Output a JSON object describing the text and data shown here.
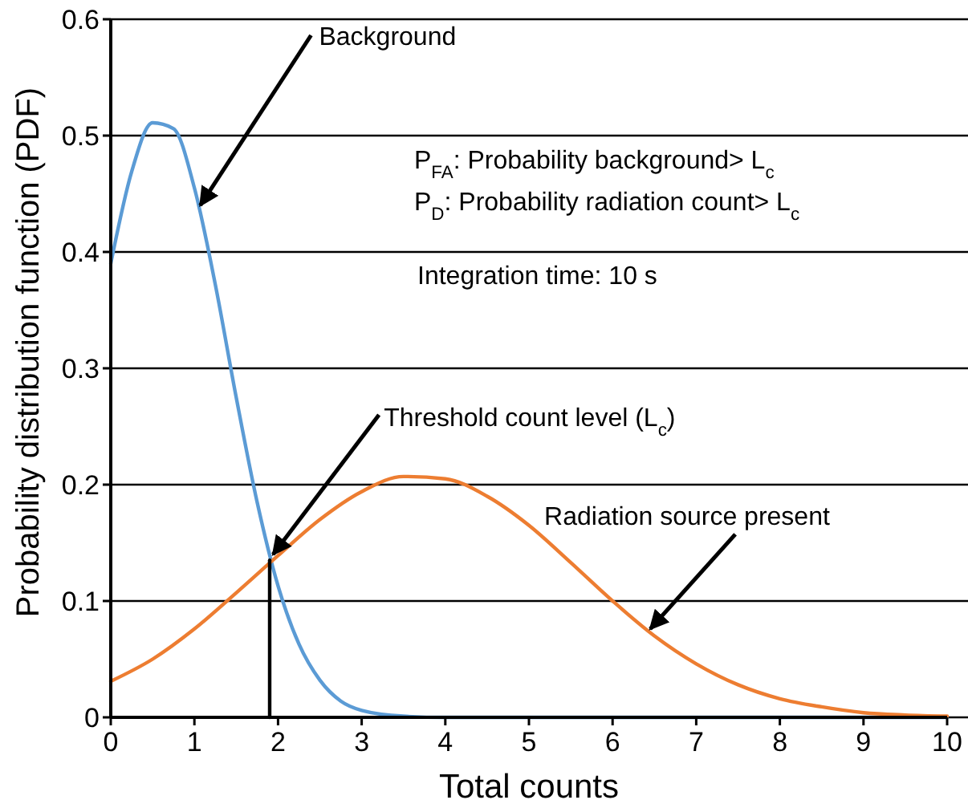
{
  "chart_data": {
    "type": "line",
    "xlabel": "Total counts",
    "ylabel": "Probability distribution function (PDF)",
    "xlim": [
      0,
      10
    ],
    "xticks": [
      0,
      1,
      2,
      3,
      4,
      5,
      6,
      7,
      8,
      9,
      10
    ],
    "ylim": [
      0,
      0.6
    ],
    "yticks": [
      0,
      0.1,
      0.2,
      0.3,
      0.4,
      0.5,
      0.6
    ],
    "grid": "y",
    "marker": "none",
    "line_style": "solid",
    "series": [
      {
        "color": "#5b9bd5",
        "x": [
          0,
          0.25,
          0.5,
          0.75,
          1,
          1.25,
          1.5,
          1.75,
          2,
          2.25,
          2.5,
          2.75,
          3,
          3.5,
          4,
          5,
          6,
          7,
          8,
          9,
          10
        ],
        "values": [
          0.39,
          0.469,
          0.511,
          0.506,
          0.455,
          0.372,
          0.275,
          0.185,
          0.113,
          0.063,
          0.032,
          0.014,
          0.006,
          0.001,
          0,
          0,
          0,
          0,
          0,
          0,
          0
        ]
      },
      {
        "color": "#ed7d31",
        "x": [
          0,
          0.5,
          1,
          1.5,
          2,
          2.5,
          3,
          3.5,
          4,
          4.5,
          5,
          5.5,
          6,
          6.5,
          7,
          7.5,
          8,
          8.5,
          9,
          9.5,
          10
        ],
        "values": [
          0.031,
          0.05,
          0.076,
          0.107,
          0.139,
          0.17,
          0.194,
          0.207,
          0.205,
          0.19,
          0.165,
          0.133,
          0.1,
          0.07,
          0.046,
          0.028,
          0.016,
          0.009,
          0.004,
          0.002,
          0.001
        ]
      },
      {
        "color": "#000000",
        "x": [
          1.9,
          1.9
        ],
        "values": [
          0,
          0.135
        ]
      }
    ],
    "annotations": [
      {
        "text": "Background",
        "x": 1.07,
        "y": 0.44
      },
      {
        "text": "Threshold count level (L$_{c}$)",
        "x": 1.94,
        "y": 0.14
      },
      {
        "text": "Radiation source present",
        "x": 6.45,
        "y": 0.076
      },
      "P$_{FA}$: Probability background> L$_{c}$",
      "P$_{D}$: Probability radiation count> L$_{c}$",
      "Integration time: 10 s"
    ]
  }
}
